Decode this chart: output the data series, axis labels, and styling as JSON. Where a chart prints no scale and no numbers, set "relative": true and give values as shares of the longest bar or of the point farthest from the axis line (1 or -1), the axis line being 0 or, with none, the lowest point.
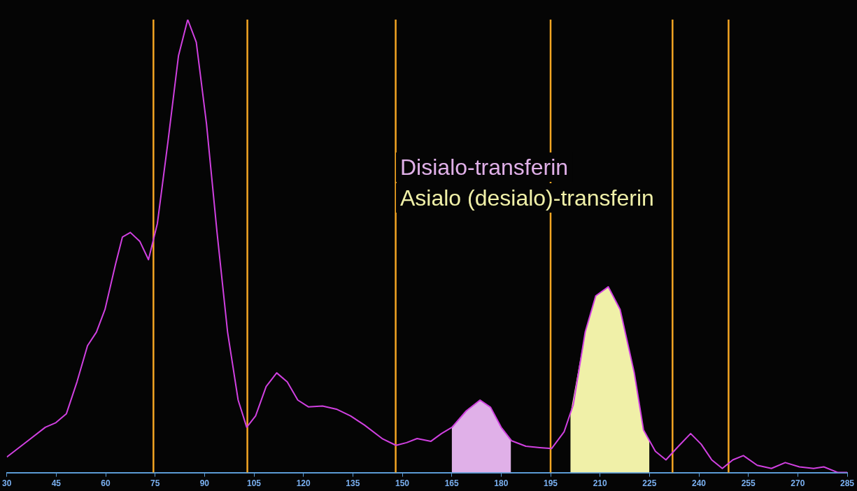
{
  "chart_data": {
    "type": "line",
    "relative": true,
    "tick_labels": "x",
    "grid": false,
    "legend": false,
    "marker": "none",
    "line_style": "solid",
    "x": [
      30,
      36.4,
      41.7,
      44.9,
      48.1,
      51.3,
      54.5,
      57.2,
      59.8,
      63.0,
      65.1,
      67.5,
      70.4,
      73.0,
      75.7,
      78.9,
      82.1,
      84.9,
      87.5,
      90.6,
      93.8,
      97.0,
      100.2,
      102.8,
      105.5,
      108.7,
      111.9,
      115.1,
      118.3,
      121.5,
      125.8,
      130.0,
      134.3,
      138.5,
      143.9,
      148.1,
      151.3,
      154.5,
      158.7,
      161.9,
      165.1,
      169.4,
      173.6,
      176.8,
      180.0,
      183.2,
      187.5,
      191.7,
      195.3,
      199.1,
      201.9,
      205.5,
      208.7,
      212.5,
      216.1,
      220.4,
      223.2,
      226.8,
      230.0,
      233.8,
      237.5,
      240.7,
      243.9,
      247.1,
      250.3,
      253.5,
      257.7,
      262.0,
      266.2,
      270.5,
      274.8,
      277.9,
      282.2,
      285
    ],
    "series": [
      {
        "type": "area",
        "name": "Disialo-transferin",
        "color": "#e0b0e8",
        "x": [
          165,
          169.4,
          173.6,
          176.8,
          180.0,
          183
        ],
        "values": [
          0.1,
          0.136,
          0.16,
          0.144,
          0.1,
          0.07
        ]
      },
      {
        "type": "area",
        "name": "Asialo (desialo)-transferin",
        "color": "#f0f0a8",
        "x": [
          201,
          205.5,
          208.7,
          212.5,
          216.1,
          220.4,
          223.2,
          225
        ],
        "values": [
          0.13,
          0.31,
          0.39,
          0.41,
          0.36,
          0.22,
          0.094,
          0.07
        ]
      },
      {
        "color": "#d040e0",
        "values": [
          0.034,
          0.07,
          0.1,
          0.11,
          0.13,
          0.2,
          0.28,
          0.31,
          0.36,
          0.46,
          0.52,
          0.53,
          0.51,
          0.47,
          0.55,
          0.73,
          0.92,
          1.0,
          0.95,
          0.77,
          0.53,
          0.31,
          0.16,
          0.1,
          0.125,
          0.19,
          0.22,
          0.2,
          0.16,
          0.145,
          0.147,
          0.14,
          0.125,
          0.105,
          0.075,
          0.06,
          0.066,
          0.075,
          0.069,
          0.086,
          0.1,
          0.136,
          0.16,
          0.144,
          0.1,
          0.07,
          0.058,
          0.055,
          0.053,
          0.09,
          0.15,
          0.31,
          0.39,
          0.41,
          0.36,
          0.22,
          0.094,
          0.047,
          0.028,
          0.058,
          0.086,
          0.0625,
          0.028,
          0.009,
          0.028,
          0.0375,
          0.016,
          0.009,
          0.022,
          0.0125,
          0.009,
          0.0125,
          0,
          0
        ]
      }
    ],
    "xlim": [
      30,
      285
    ],
    "xticks": [
      30,
      45,
      60,
      75,
      90,
      105,
      120,
      135,
      150,
      165,
      180,
      195,
      210,
      225,
      240,
      255,
      270,
      285
    ],
    "ref_lines": [
      {
        "axis": "x",
        "value": 74.5,
        "color": "#f5a623"
      },
      {
        "axis": "x",
        "value": 103,
        "color": "#f5a623"
      },
      {
        "axis": "x",
        "value": 148,
        "color": "#f5a623"
      },
      {
        "axis": "x",
        "value": 195,
        "color": "#f5a623"
      },
      {
        "axis": "x",
        "value": 232,
        "color": "#f5a623"
      },
      {
        "axis": "x",
        "value": 249,
        "color": "#f5a623"
      }
    ]
  }
}
